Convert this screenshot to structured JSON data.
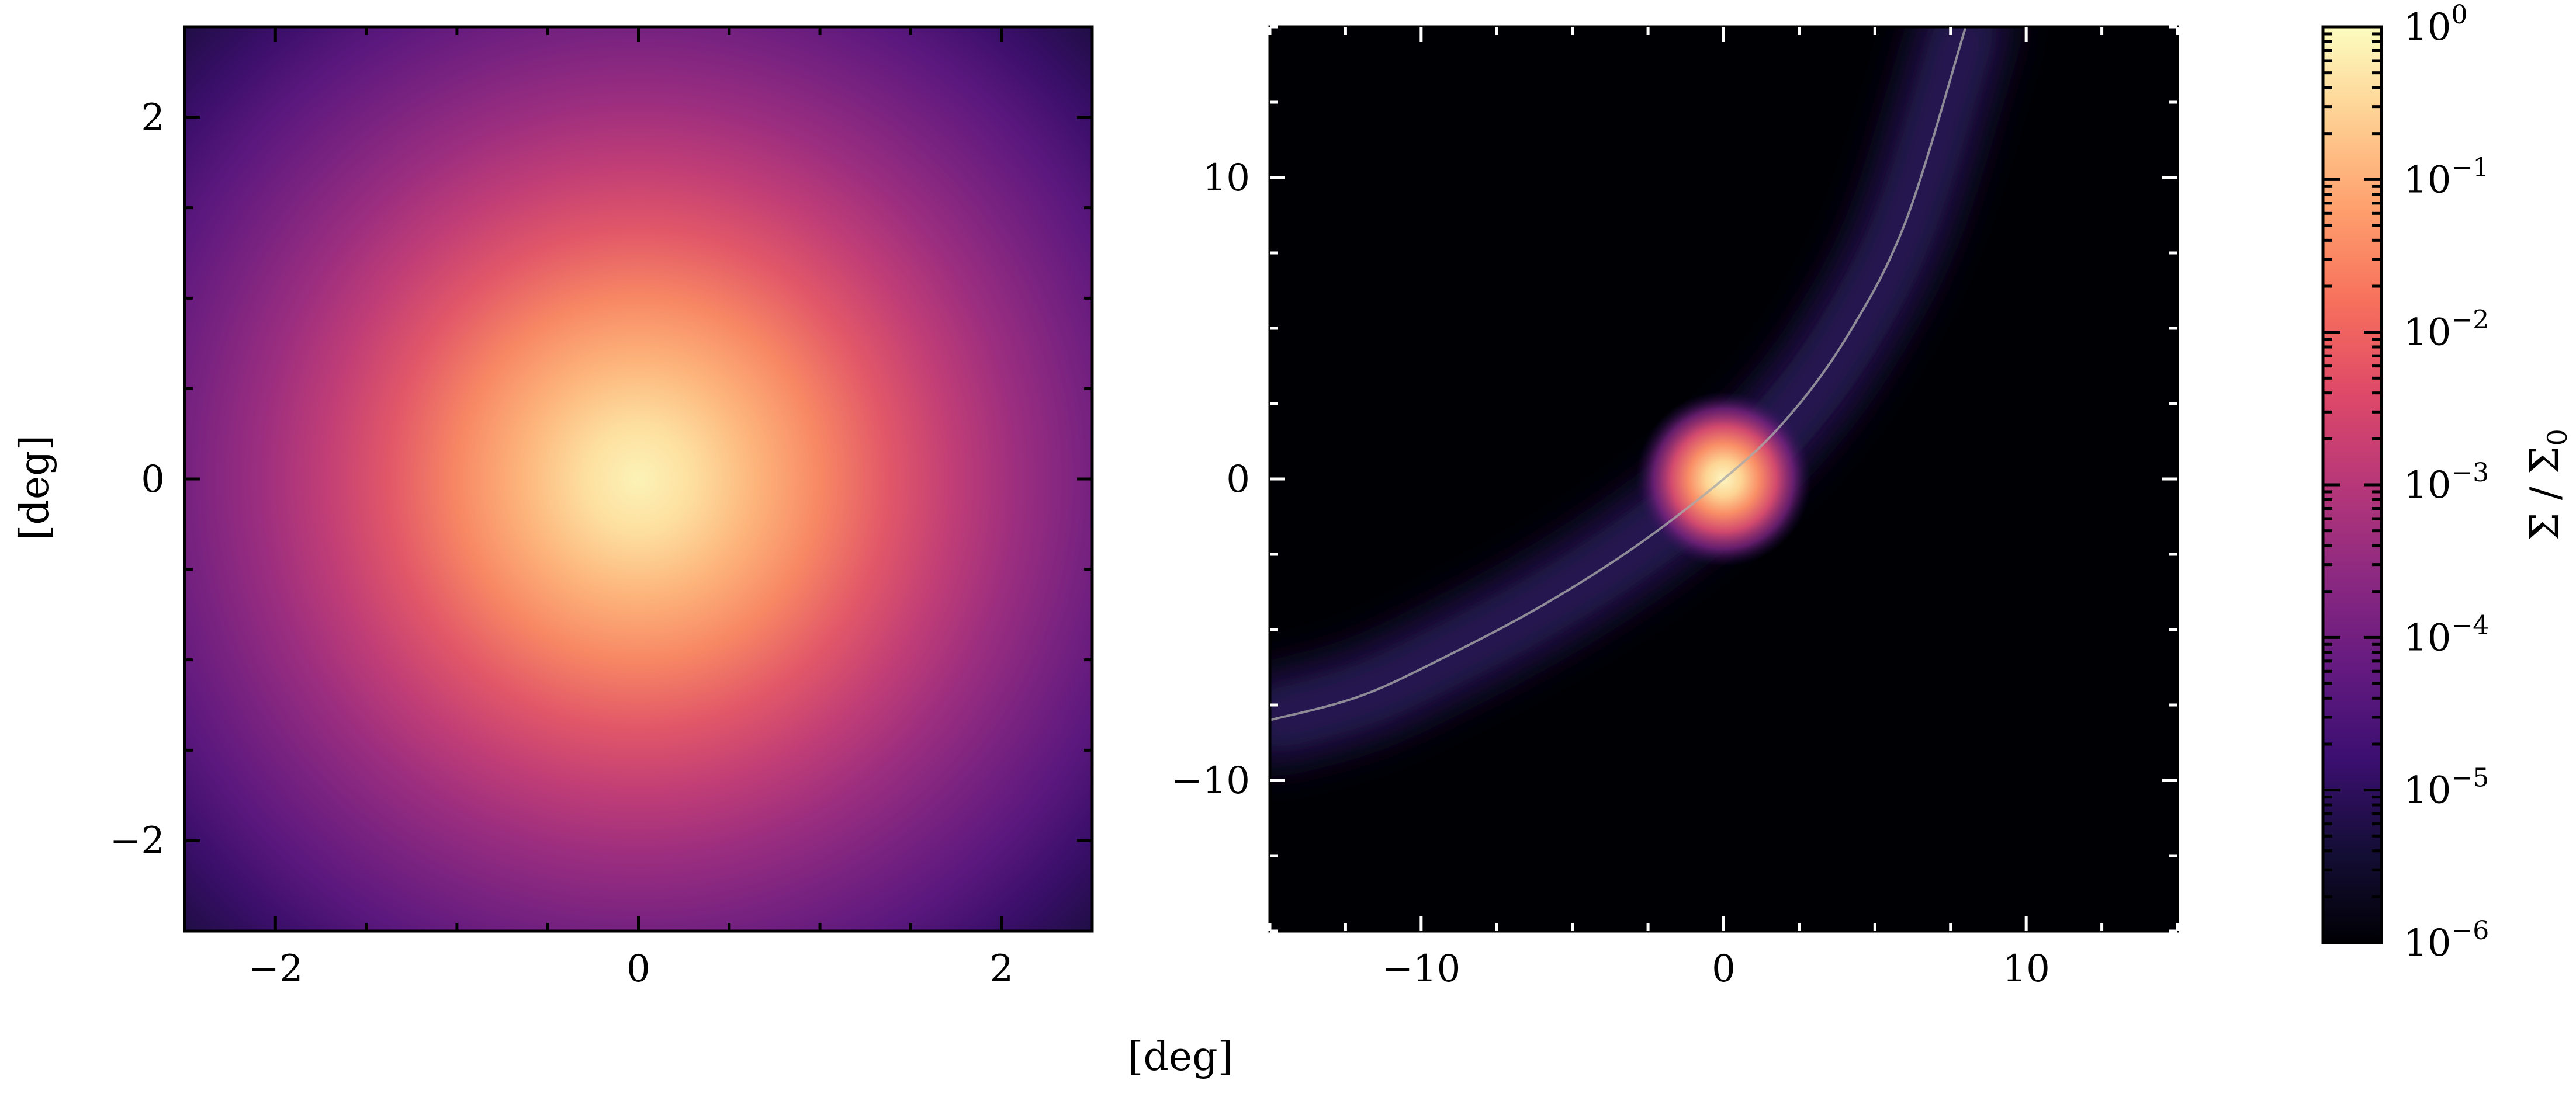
{
  "chart_data": [
    {
      "type": "heatmap",
      "panel": "left",
      "description_of_field": "radially symmetric surface density peaked at origin",
      "xlim": [
        -2.5,
        2.5
      ],
      "ylim": [
        -2.5,
        2.5
      ],
      "xticks": [
        -2,
        0,
        2
      ],
      "yticks": [
        -2,
        0,
        2
      ],
      "xtick_labels": [
        "−2",
        "0",
        "2"
      ],
      "ytick_labels": [
        "−2",
        "0",
        "2"
      ],
      "ylabel": "[deg]",
      "peak": {
        "x": 0,
        "y": 0,
        "value": 1.0
      },
      "value_at_edge_corner": 2e-05
    },
    {
      "type": "heatmap",
      "panel": "right",
      "xlim": [
        -15,
        15
      ],
      "ylim": [
        -15,
        15
      ],
      "xticks": [
        -10,
        0,
        10
      ],
      "yticks": [
        -10,
        0,
        10
      ],
      "xtick_labels": [
        "−10",
        "0",
        "10"
      ],
      "ytick_labels": [
        "−10",
        "0",
        "10"
      ],
      "peak": {
        "x": 0,
        "y": 0,
        "value": 1.0
      },
      "orbit_track": {
        "x": [
          -15,
          -12,
          -9,
          -6,
          -3,
          0,
          2,
          4,
          6,
          8
        ],
        "y": [
          -8,
          -7.2,
          -5.8,
          -4.2,
          -2.3,
          0,
          1.9,
          4.6,
          8.5,
          15
        ]
      },
      "stream_value": 1e-05
    }
  ],
  "shared_xlabel": "[deg]",
  "colorbar": {
    "scale": "log",
    "colormap": "magma",
    "range": [
      1e-06,
      1
    ],
    "tick_labels": [
      {
        "base": "10",
        "exp": "0"
      },
      {
        "base": "10",
        "exp": "−1"
      },
      {
        "base": "10",
        "exp": "−2"
      },
      {
        "base": "10",
        "exp": "−3"
      },
      {
        "base": "10",
        "exp": "−4"
      },
      {
        "base": "10",
        "exp": "−5"
      },
      {
        "base": "10",
        "exp": "−6"
      }
    ],
    "label": "Σ / Σ",
    "label_subscript": "0"
  }
}
